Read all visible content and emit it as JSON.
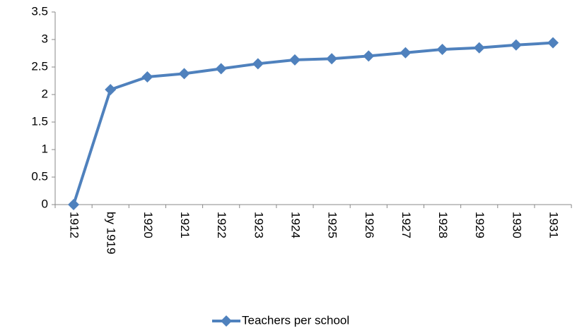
{
  "chart_data": {
    "type": "line",
    "categories": [
      "1912",
      "by 1919",
      "1920",
      "1921",
      "1922",
      "1923",
      "1924",
      "1925",
      "1926",
      "1927",
      "1928",
      "1929",
      "1930",
      "1931"
    ],
    "series": [
      {
        "name": "Teachers per school",
        "color": "#4f81bd",
        "values": [
          0,
          2.09,
          2.32,
          2.38,
          2.47,
          2.56,
          2.63,
          2.65,
          2.7,
          2.76,
          2.82,
          2.85,
          2.9,
          2.94
        ]
      }
    ],
    "ylim": [
      0,
      3.5
    ],
    "yticks": [
      0,
      0.5,
      1,
      1.5,
      2,
      2.5,
      3,
      3.5
    ],
    "grid": false,
    "legend": "bottom"
  }
}
